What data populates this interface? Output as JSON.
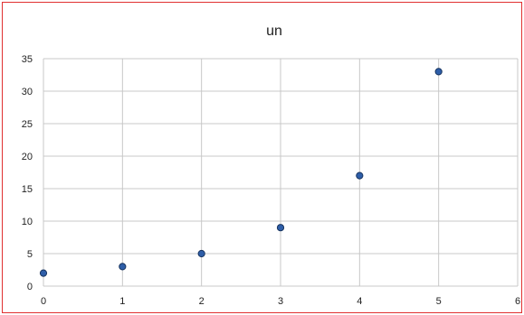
{
  "chart_data": {
    "type": "scatter",
    "title": "un",
    "xlabel": "",
    "ylabel": "",
    "x": [
      0,
      1,
      2,
      3,
      4,
      5
    ],
    "y": [
      2,
      3,
      5,
      9,
      17,
      33
    ],
    "xlim": [
      0,
      6
    ],
    "ylim": [
      0,
      35
    ],
    "x_ticks": [
      "0",
      "1",
      "2",
      "3",
      "4",
      "5",
      "6"
    ],
    "y_ticks": [
      "0",
      "5",
      "10",
      "15",
      "20",
      "25",
      "30",
      "35"
    ],
    "grid": true,
    "legend": "none",
    "colors": {
      "marker_fill": "#2e5ea8",
      "marker_edge": "#17345f",
      "grid": "#c8c8c8",
      "border": "#e03030"
    }
  }
}
